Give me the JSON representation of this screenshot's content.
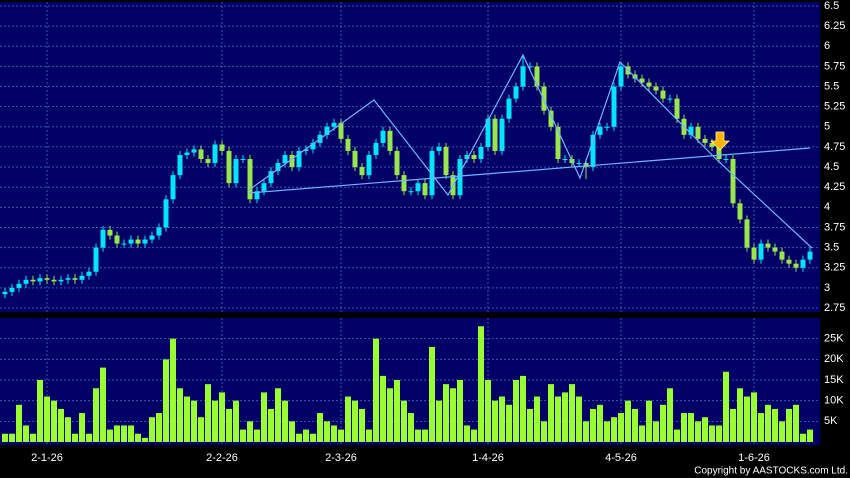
{
  "chart_data": {
    "type": "candlestick",
    "categories": [
      null,
      null,
      null,
      null,
      null,
      null,
      "2-1-26",
      null,
      null,
      null,
      null,
      null,
      null,
      null,
      null,
      null,
      null,
      null,
      null,
      null,
      null,
      null,
      null,
      null,
      null,
      null,
      null,
      null,
      null,
      null,
      null,
      "2-2-26",
      null,
      null,
      null,
      null,
      null,
      null,
      null,
      null,
      null,
      null,
      null,
      null,
      null,
      null,
      null,
      null,
      "2-3-26",
      null,
      null,
      null,
      null,
      null,
      null,
      null,
      null,
      null,
      null,
      null,
      null,
      null,
      null,
      null,
      null,
      null,
      null,
      null,
      null,
      "1-4-26",
      null,
      null,
      null,
      null,
      null,
      null,
      null,
      null,
      null,
      null,
      null,
      null,
      null,
      null,
      null,
      null,
      null,
      null,
      "4-5-26",
      null,
      null,
      null,
      null,
      null,
      null,
      null,
      null,
      null,
      null,
      null,
      null,
      null,
      null,
      null,
      null,
      null,
      null,
      "1-6-26",
      null,
      null,
      null,
      null,
      null,
      null,
      null,
      null
    ],
    "open": [
      2.92,
      2.95,
      3.0,
      3.05,
      3.1,
      3.08,
      3.12,
      3.1,
      3.08,
      3.1,
      3.12,
      3.1,
      3.15,
      3.2,
      3.5,
      3.72,
      3.65,
      3.55,
      3.55,
      3.6,
      3.55,
      3.6,
      3.65,
      3.75,
      4.1,
      4.4,
      4.65,
      4.68,
      4.72,
      4.6,
      4.55,
      4.78,
      4.7,
      4.3,
      4.6,
      4.6,
      4.1,
      4.2,
      4.3,
      4.45,
      4.55,
      4.65,
      4.5,
      4.7,
      4.72,
      4.8,
      4.9,
      5.0,
      5.05,
      4.85,
      4.7,
      4.5,
      4.4,
      4.65,
      4.8,
      4.95,
      4.7,
      4.4,
      4.2,
      4.2,
      4.3,
      4.15,
      4.7,
      4.75,
      4.4,
      4.15,
      4.6,
      4.65,
      4.6,
      4.75,
      5.1,
      4.7,
      5.1,
      5.35,
      5.5,
      5.75,
      5.75,
      5.5,
      5.2,
      5.0,
      4.6,
      4.6,
      4.55,
      4.55,
      4.5,
      4.9,
      5.0,
      5.0,
      5.5,
      5.75,
      5.65,
      5.6,
      5.55,
      5.5,
      5.45,
      5.35,
      5.35,
      5.1,
      4.9,
      5.0,
      4.85,
      4.8,
      4.75,
      4.6,
      4.6,
      4.05,
      3.85,
      3.5,
      3.35,
      3.55,
      3.5,
      3.45,
      3.35,
      3.3,
      3.25,
      3.35
    ],
    "high": [
      3.0,
      3.05,
      3.1,
      3.15,
      3.15,
      3.17,
      3.17,
      3.15,
      3.15,
      3.17,
      3.17,
      3.2,
      3.25,
      3.55,
      3.77,
      3.77,
      3.7,
      3.6,
      3.65,
      3.65,
      3.65,
      3.7,
      3.8,
      4.15,
      4.45,
      4.7,
      4.73,
      4.77,
      4.77,
      4.65,
      4.83,
      4.83,
      4.75,
      4.65,
      4.65,
      4.65,
      4.25,
      4.35,
      4.5,
      4.6,
      4.7,
      4.7,
      4.75,
      4.77,
      4.85,
      4.95,
      5.05,
      5.1,
      5.1,
      4.9,
      4.75,
      4.55,
      4.7,
      4.85,
      5.0,
      5.0,
      4.75,
      4.45,
      4.25,
      4.35,
      4.35,
      4.75,
      4.8,
      4.8,
      4.45,
      4.65,
      4.7,
      4.7,
      4.8,
      5.15,
      5.15,
      5.15,
      5.4,
      5.55,
      5.9,
      5.8,
      5.8,
      5.55,
      5.25,
      5.05,
      4.65,
      4.65,
      4.6,
      4.6,
      4.95,
      5.05,
      5.05,
      5.55,
      5.8,
      5.8,
      5.7,
      5.65,
      5.6,
      5.55,
      5.5,
      5.4,
      5.4,
      5.15,
      5.05,
      5.05,
      4.9,
      4.85,
      4.8,
      4.65,
      4.65,
      4.1,
      3.9,
      3.55,
      3.6,
      3.6,
      3.55,
      3.5,
      3.4,
      3.35,
      3.4,
      3.5
    ],
    "low": [
      2.87,
      2.9,
      2.95,
      3.0,
      3.03,
      3.03,
      3.05,
      3.03,
      3.03,
      3.05,
      3.05,
      3.05,
      3.1,
      3.15,
      3.45,
      3.6,
      3.5,
      3.5,
      3.5,
      3.5,
      3.5,
      3.55,
      3.6,
      3.7,
      4.05,
      4.35,
      4.6,
      4.63,
      4.55,
      4.5,
      4.5,
      4.65,
      4.25,
      4.25,
      4.55,
      4.05,
      4.05,
      4.15,
      4.25,
      4.4,
      4.5,
      4.45,
      4.45,
      4.65,
      4.67,
      4.75,
      4.85,
      4.95,
      4.8,
      4.65,
      4.45,
      4.35,
      4.35,
      4.6,
      4.75,
      4.65,
      4.35,
      4.15,
      4.15,
      4.15,
      4.1,
      4.1,
      4.65,
      4.35,
      4.1,
      4.1,
      4.55,
      4.55,
      4.55,
      4.7,
      4.65,
      4.65,
      5.05,
      5.3,
      5.45,
      5.7,
      5.45,
      5.15,
      4.95,
      4.55,
      4.55,
      4.5,
      4.5,
      4.35,
      4.45,
      4.85,
      4.95,
      4.95,
      5.45,
      5.6,
      5.55,
      5.5,
      5.45,
      5.4,
      5.3,
      5.3,
      5.05,
      4.85,
      4.85,
      4.8,
      4.75,
      4.7,
      4.55,
      4.55,
      4.0,
      3.8,
      3.45,
      3.3,
      3.3,
      3.45,
      3.4,
      3.3,
      3.25,
      3.2,
      3.2,
      3.3
    ],
    "close": [
      2.95,
      3.0,
      3.05,
      3.1,
      3.08,
      3.12,
      3.1,
      3.08,
      3.1,
      3.12,
      3.1,
      3.15,
      3.2,
      3.5,
      3.72,
      3.65,
      3.55,
      3.55,
      3.6,
      3.55,
      3.6,
      3.65,
      3.75,
      4.1,
      4.4,
      4.65,
      4.68,
      4.72,
      4.6,
      4.55,
      4.78,
      4.7,
      4.3,
      4.6,
      4.6,
      4.1,
      4.2,
      4.3,
      4.45,
      4.55,
      4.65,
      4.5,
      4.7,
      4.72,
      4.8,
      4.9,
      5.0,
      5.05,
      4.85,
      4.7,
      4.5,
      4.4,
      4.65,
      4.8,
      4.95,
      4.7,
      4.4,
      4.2,
      4.2,
      4.3,
      4.15,
      4.7,
      4.75,
      4.4,
      4.15,
      4.6,
      4.65,
      4.6,
      4.75,
      5.1,
      4.7,
      5.1,
      5.35,
      5.5,
      5.75,
      5.75,
      5.5,
      5.2,
      5.0,
      4.6,
      4.6,
      4.55,
      4.55,
      4.5,
      4.9,
      5.0,
      5.0,
      5.5,
      5.75,
      5.65,
      5.6,
      5.55,
      5.5,
      5.45,
      5.35,
      5.35,
      5.1,
      4.9,
      5.0,
      4.85,
      4.8,
      4.75,
      4.6,
      4.6,
      4.05,
      3.85,
      3.5,
      3.35,
      3.55,
      3.5,
      3.45,
      3.35,
      3.3,
      3.25,
      3.35,
      3.45
    ],
    "up_color": "#00e5ff",
    "down_color": "#99e64d",
    "ylim": [
      2.7,
      6.55
    ],
    "yticks": [
      2.75,
      3,
      3.25,
      3.5,
      3.75,
      4,
      4.25,
      4.5,
      4.75,
      5,
      5.25,
      5.5,
      5.75,
      6,
      6.25,
      6.5
    ],
    "volume": {
      "values": [
        2000,
        2000,
        9000,
        4000,
        2000,
        15000,
        11000,
        10000,
        8000,
        6000,
        2000,
        7000,
        2000,
        13000,
        18000,
        3000,
        4000,
        4000,
        4000,
        2000,
        1000,
        6000,
        7000,
        20000,
        25000,
        13000,
        11000,
        10000,
        6000,
        14000,
        10000,
        12000,
        8000,
        10000,
        3000,
        5000,
        3000,
        12000,
        8000,
        13000,
        10000,
        5000,
        2000,
        3000,
        2000,
        7000,
        5000,
        4000,
        3000,
        11000,
        10000,
        8000,
        3000,
        25000,
        16000,
        13000,
        15000,
        10000,
        7000,
        3000,
        3000,
        23000,
        10000,
        14000,
        13000,
        15000,
        4000,
        3000,
        28000,
        15000,
        10000,
        11000,
        9000,
        15000,
        16000,
        8000,
        11000,
        5000,
        14000,
        11000,
        12000,
        14000,
        11000,
        5000,
        8000,
        9000,
        5000,
        6000,
        7000,
        10000,
        8000,
        4000,
        10000,
        5000,
        9000,
        13000,
        3000,
        7000,
        7000,
        5000,
        6000,
        4000,
        4000,
        17000,
        8000,
        13000,
        11000,
        12000,
        7000,
        9000,
        8000,
        5000,
        8000,
        9000,
        2000,
        3000
      ],
      "color": "#99ff33",
      "ylim": [
        0,
        30000
      ],
      "yticks": [
        {
          "value": 5000,
          "label": "5K"
        },
        {
          "value": 10000,
          "label": "10K"
        },
        {
          "value": 15000,
          "label": "15K"
        },
        {
          "value": 20000,
          "label": "20K"
        },
        {
          "value": 25000,
          "label": "25K"
        }
      ]
    },
    "copyright": "Copyright by AASTOCKS.com Ltd."
  }
}
